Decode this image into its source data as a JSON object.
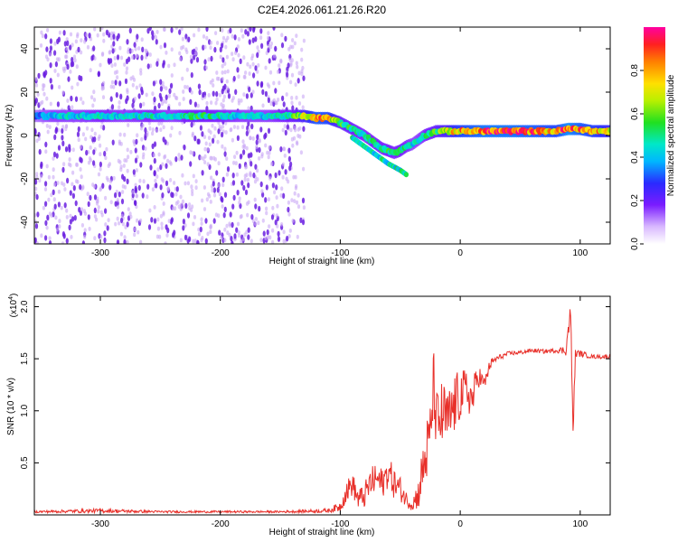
{
  "title": "C2E4.2026.061.21.26.R20",
  "colors": {
    "snr_line": "#e8302a",
    "spectrogram_scatter": "#6a1fe0",
    "axis": "#000000"
  },
  "chart_data": [
    {
      "type": "heatmap",
      "name": "spectrogram",
      "xlabel": "Height of straight line (km)",
      "ylabel": "Frequency (Hz)",
      "xlim": [
        -355,
        125
      ],
      "ylim": [
        -50,
        50
      ],
      "xticks": [
        "-300",
        "-200",
        "-100",
        "0",
        "100"
      ],
      "xtick_values": [
        -300,
        -200,
        -100,
        0,
        100
      ],
      "yticks": [
        "-40",
        "-20",
        "0",
        "20",
        "40"
      ],
      "ytick_values": [
        -40,
        -20,
        0,
        20,
        40
      ],
      "colorbar": {
        "label": "Normalized spectral amplitude",
        "range": [
          0,
          1
        ],
        "ticks": [
          "0.0",
          "0.2",
          "0.4",
          "0.6",
          "0.8"
        ],
        "tick_values": [
          0.0,
          0.2,
          0.4,
          0.6,
          0.8
        ]
      },
      "ridge": {
        "x": [
          -355,
          -340,
          -320,
          -300,
          -280,
          -260,
          -240,
          -220,
          -200,
          -180,
          -160,
          -140,
          -130,
          -120,
          -110,
          -100,
          -90,
          -80,
          -75,
          -70,
          -65,
          -60,
          -55,
          -50,
          -45,
          -40,
          -35,
          -30,
          -25,
          -20,
          -15,
          -10,
          -5,
          0,
          20,
          40,
          60,
          80,
          90,
          100,
          110,
          125
        ],
        "y": [
          9,
          9,
          9,
          9,
          9,
          9,
          9,
          9,
          9,
          9,
          9,
          9,
          9,
          8,
          8,
          6,
          3,
          0,
          -2,
          -4,
          -6,
          -7,
          -8,
          -7,
          -5,
          -4,
          -2,
          0,
          1,
          2,
          2,
          2,
          2,
          2,
          2,
          2,
          2,
          2,
          3,
          3,
          2,
          2
        ],
        "amplitude": [
          0.35,
          0.45,
          0.45,
          0.5,
          0.45,
          0.5,
          0.45,
          0.55,
          0.5,
          0.45,
          0.45,
          0.55,
          0.7,
          0.9,
          0.85,
          0.6,
          0.55,
          0.5,
          0.5,
          0.55,
          0.5,
          0.55,
          0.5,
          0.55,
          0.5,
          0.45,
          0.45,
          0.5,
          0.55,
          0.6,
          0.65,
          0.7,
          0.8,
          0.85,
          0.95,
          0.95,
          0.9,
          0.85,
          1.0,
          0.9,
          0.85,
          0.75
        ]
      },
      "secondary_branch": {
        "x": [
          -90,
          -80,
          -70,
          -60,
          -50,
          -45
        ],
        "y": [
          -1,
          -5,
          -9,
          -13,
          -16,
          -18
        ]
      },
      "noise_region_x": [
        -355,
        -130
      ]
    },
    {
      "type": "line",
      "name": "snr",
      "xlabel": "Height of straight line (km)",
      "ylabel": "SNR (10 * v/v)",
      "multiplier_label": "(x10",
      "multiplier_exp": "4",
      "xlim": [
        -355,
        125
      ],
      "ylim": [
        0,
        2.1
      ],
      "xticks": [
        "-300",
        "-200",
        "-100",
        "0",
        "100"
      ],
      "xtick_values": [
        -300,
        -200,
        -100,
        0,
        100
      ],
      "yticks": [
        "0.5",
        "1.0",
        "1.5",
        "2.0"
      ],
      "ytick_values": [
        0.5,
        1.0,
        1.5,
        2.0
      ],
      "x": [
        -355,
        -300,
        -250,
        -200,
        -150,
        -110,
        -100,
        -95,
        -90,
        -85,
        -80,
        -75,
        -70,
        -65,
        -60,
        -55,
        -50,
        -45,
        -40,
        -35,
        -30,
        -25,
        -22,
        -20,
        -15,
        -10,
        -5,
        0,
        5,
        10,
        15,
        20,
        25,
        30,
        40,
        50,
        60,
        70,
        80,
        88,
        92,
        94,
        96,
        100,
        110,
        125
      ],
      "y": [
        0.03,
        0.04,
        0.03,
        0.03,
        0.03,
        0.04,
        0.08,
        0.22,
        0.3,
        0.15,
        0.18,
        0.3,
        0.35,
        0.3,
        0.42,
        0.3,
        0.25,
        0.15,
        0.1,
        0.2,
        0.5,
        0.75,
        1.3,
        0.85,
        0.95,
        0.9,
        1.05,
        1.15,
        1.2,
        1.1,
        1.35,
        1.25,
        1.45,
        1.5,
        1.55,
        1.56,
        1.58,
        1.57,
        1.58,
        1.58,
        1.95,
        0.8,
        1.55,
        1.55,
        1.52,
        1.52
      ],
      "jitter": [
        0.01,
        0.02,
        0.01,
        0.01,
        0.01,
        0.02,
        0.05,
        0.1,
        0.12,
        0.1,
        0.12,
        0.15,
        0.15,
        0.15,
        0.15,
        0.15,
        0.12,
        0.08,
        0.06,
        0.15,
        0.3,
        0.35,
        0.3,
        0.35,
        0.35,
        0.3,
        0.3,
        0.25,
        0.2,
        0.2,
        0.12,
        0.08,
        0.05,
        0.03,
        0.02,
        0.02,
        0.02,
        0.02,
        0.02,
        0.05,
        0.1,
        0.1,
        0.04,
        0.03,
        0.02,
        0.02
      ]
    }
  ]
}
